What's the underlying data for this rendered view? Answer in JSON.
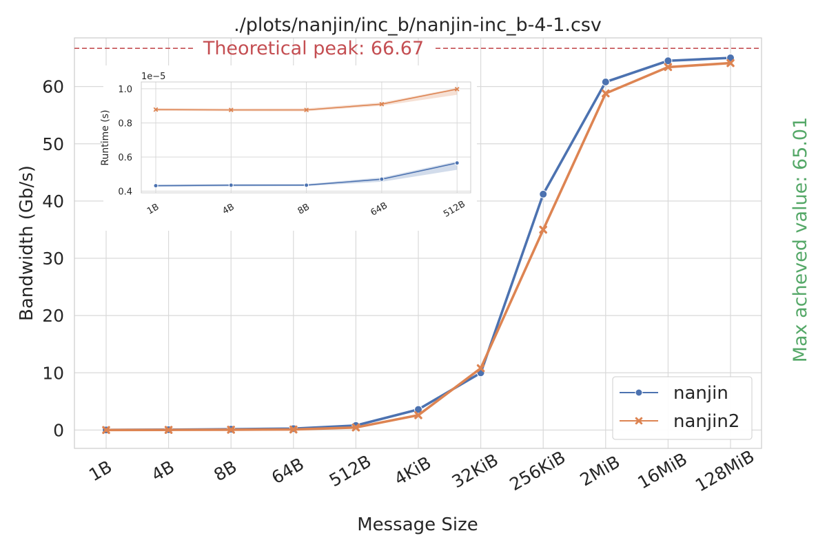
{
  "chart_data": [
    {
      "type": "line",
      "title": "./plots/nanjin/inc_b/nanjin-inc_b-4-1.csv",
      "xlabel": "Message Size",
      "ylabel": "Bandwidth (Gb/s)",
      "categories": [
        "1B",
        "4B",
        "8B",
        "64B",
        "512B",
        "4KiB",
        "32KiB",
        "256KiB",
        "2MiB",
        "16MiB",
        "128MiB"
      ],
      "ylim": [
        -3.2,
        68.5
      ],
      "yticks": [
        0,
        10,
        20,
        30,
        40,
        50,
        60
      ],
      "grid": true,
      "legend_position": "bottom-right",
      "series": [
        {
          "name": "nanjin",
          "color": "#4c72b0",
          "marker": "circle",
          "values": [
            0.02,
            0.07,
            0.15,
            0.25,
            0.8,
            3.6,
            10.0,
            41.2,
            60.8,
            64.5,
            65.01
          ]
        },
        {
          "name": "nanjin2",
          "color": "#dd8452",
          "marker": "x",
          "values": [
            0.01,
            0.03,
            0.06,
            0.1,
            0.45,
            2.6,
            10.8,
            35.0,
            58.8,
            63.4,
            64.1
          ]
        }
      ],
      "reference_line": {
        "label": "Theoretical peak: 66.67",
        "value": 66.67,
        "color": "#c44e52"
      },
      "side_annotation": {
        "label": "Max acheved value: 65.01",
        "color": "#55a868"
      }
    },
    {
      "type": "line",
      "title": "",
      "xlabel": "",
      "ylabel": "Runtime (s)",
      "offset_label": "1e−5",
      "categories": [
        "1B",
        "4B",
        "8B",
        "64B",
        "512B"
      ],
      "ylim": [
        0.39,
        1.04
      ],
      "yticks": [
        0.4,
        0.6,
        0.8,
        1.0
      ],
      "ytick_labels": [
        "0.4",
        "0.6",
        "0.8",
        "1.0"
      ],
      "grid": true,
      "series": [
        {
          "name": "nanjin",
          "color": "#4c72b0",
          "marker": "circle",
          "values": [
            0.432,
            0.435,
            0.435,
            0.47,
            0.565
          ],
          "band": [
            [
              0.425,
              0.438
            ],
            [
              0.428,
              0.441
            ],
            [
              0.43,
              0.442
            ],
            [
              0.455,
              0.48
            ],
            [
              0.525,
              0.575
            ]
          ]
        },
        {
          "name": "nanjin2",
          "color": "#dd8452",
          "marker": "x",
          "values": [
            0.878,
            0.876,
            0.876,
            0.91,
            0.998
          ],
          "band": [
            [
              0.87,
              0.886
            ],
            [
              0.869,
              0.884
            ],
            [
              0.868,
              0.885
            ],
            [
              0.9,
              0.92
            ],
            [
              0.965,
              1.005
            ]
          ]
        }
      ]
    }
  ]
}
